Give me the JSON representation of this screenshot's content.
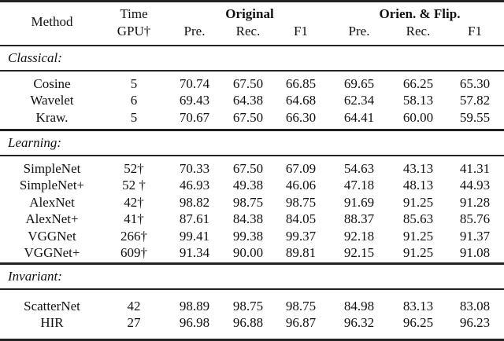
{
  "header": {
    "method": "Method",
    "time_line1": "Time",
    "time_line2": "GPU†",
    "group_original": "Original",
    "group_orient": "Orien. & Flip.",
    "sub": [
      "Pre.",
      "Rec.",
      "F1",
      "Pre.",
      "Rec.",
      "F1"
    ]
  },
  "sections": [
    {
      "title": "Classical:",
      "rows": [
        {
          "method": "Cosine",
          "time": "5",
          "values": [
            "70.74",
            "67.50",
            "66.85",
            "69.65",
            "66.25",
            "65.30"
          ]
        },
        {
          "method": "Wavelet",
          "time": "6",
          "values": [
            "69.43",
            "64.38",
            "64.68",
            "62.34",
            "58.13",
            "57.82"
          ]
        },
        {
          "method": "Kraw.",
          "time": "5",
          "values": [
            "70.67",
            "67.50",
            "66.30",
            "64.41",
            "60.00",
            "59.55"
          ]
        }
      ]
    },
    {
      "title": "Learning:",
      "rows": [
        {
          "method": "SimpleNet",
          "time": "52†",
          "values": [
            "70.33",
            "67.50",
            "67.09",
            "54.63",
            "43.13",
            "41.31"
          ]
        },
        {
          "method": "SimpleNet+",
          "time": "52 †",
          "values": [
            "46.93",
            "49.38",
            "46.06",
            "47.18",
            "48.13",
            "44.93"
          ]
        },
        {
          "method": "AlexNet",
          "time": "42†",
          "values": [
            "98.82",
            "98.75",
            "98.75",
            "91.69",
            "91.25",
            "91.28"
          ]
        },
        {
          "method": "AlexNet+",
          "time": "41†",
          "values": [
            "87.61",
            "84.38",
            "84.05",
            "88.37",
            "85.63",
            "85.76"
          ]
        },
        {
          "method": "VGGNet",
          "time": "266†",
          "values": [
            "99.41",
            "99.38",
            "99.37",
            "92.18",
            "91.25",
            "91.37"
          ]
        },
        {
          "method": "VGGNet+",
          "time": "609†",
          "values": [
            "91.34",
            "90.00",
            "89.81",
            "92.15",
            "91.25",
            "91.08"
          ]
        }
      ]
    },
    {
      "title": "Invariant:",
      "rows": [
        {
          "method": "ScatterNet",
          "time": "42",
          "values": [
            "98.89",
            "98.75",
            "98.75",
            "84.98",
            "83.13",
            "83.08"
          ]
        },
        {
          "method": "HIR",
          "time": "27",
          "values": [
            "96.98",
            "96.88",
            "96.87",
            "96.32",
            "96.25",
            "96.23"
          ]
        }
      ]
    }
  ]
}
